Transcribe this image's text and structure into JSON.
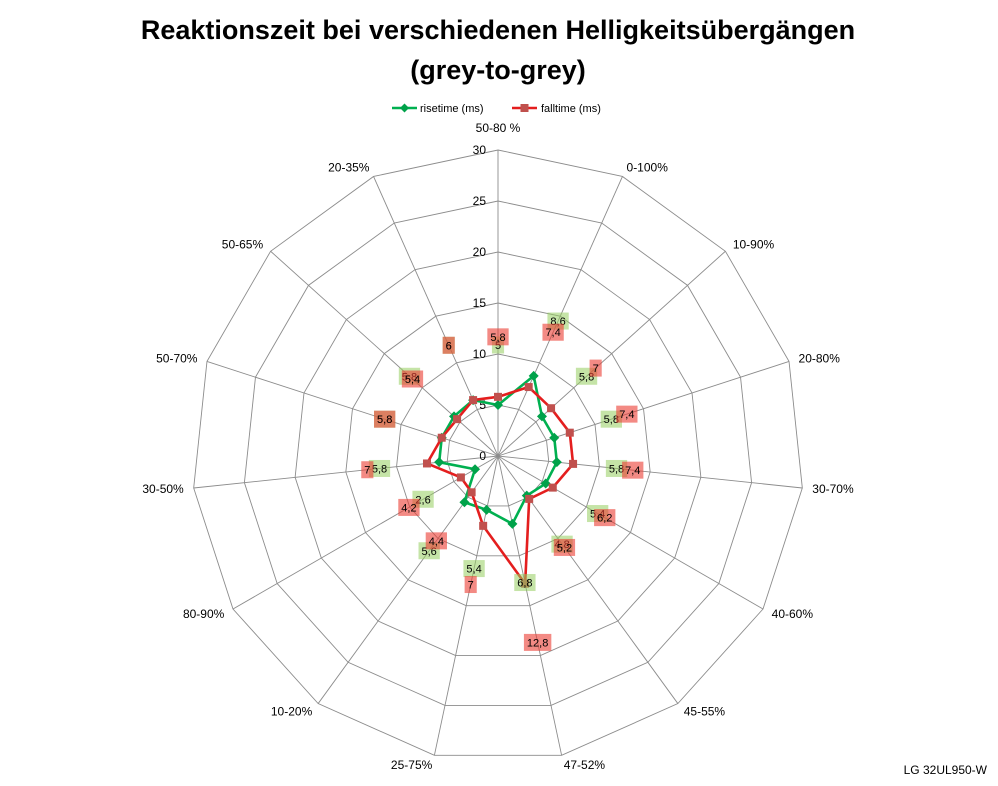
{
  "chart_data": {
    "type": "radar",
    "title_lines": [
      "Reaktionszeit bei verschiedenen Helligkeitsübergängen",
      "(grey-to-grey)"
    ],
    "categories": [
      "50-80 %",
      "0-100%",
      "10-90%",
      "20-80%",
      "30-70%",
      "40-60%",
      "45-55%",
      "47-52%",
      "25-75%",
      "10-20%",
      "80-90%",
      "30-50%",
      "50-70%",
      "50-65%",
      "20-35%"
    ],
    "series": [
      {
        "name": "risetime (ms)",
        "values": [
          5,
          8.6,
          5.8,
          5.8,
          5.8,
          5.4,
          4.8,
          6.8,
          5.4,
          5.6,
          2.6,
          5.8,
          5.8,
          5.8,
          6
        ],
        "line_color": "#00b050",
        "marker_color": "#00a24a",
        "marker": "diamond",
        "label_color": "rgba(150, 205, 95, 0.55)"
      },
      {
        "name": "falltime (ms)",
        "values": [
          5.8,
          7.4,
          7,
          7.4,
          7.4,
          6.2,
          5.2,
          12.8,
          7,
          4.4,
          4.2,
          7,
          5.8,
          5.4,
          6
        ],
        "line_color": "#e41e1e",
        "marker_color": "#c0504d",
        "marker": "square",
        "label_color": "rgba(235, 60, 50, 0.6)"
      }
    ],
    "r_range": [
      0,
      30
    ],
    "r_ticks": [
      0,
      5,
      10,
      15,
      20,
      25,
      30
    ],
    "grid": true,
    "data_labels": true,
    "legend_position": "top"
  },
  "footnote": "LG 32UL950-W"
}
